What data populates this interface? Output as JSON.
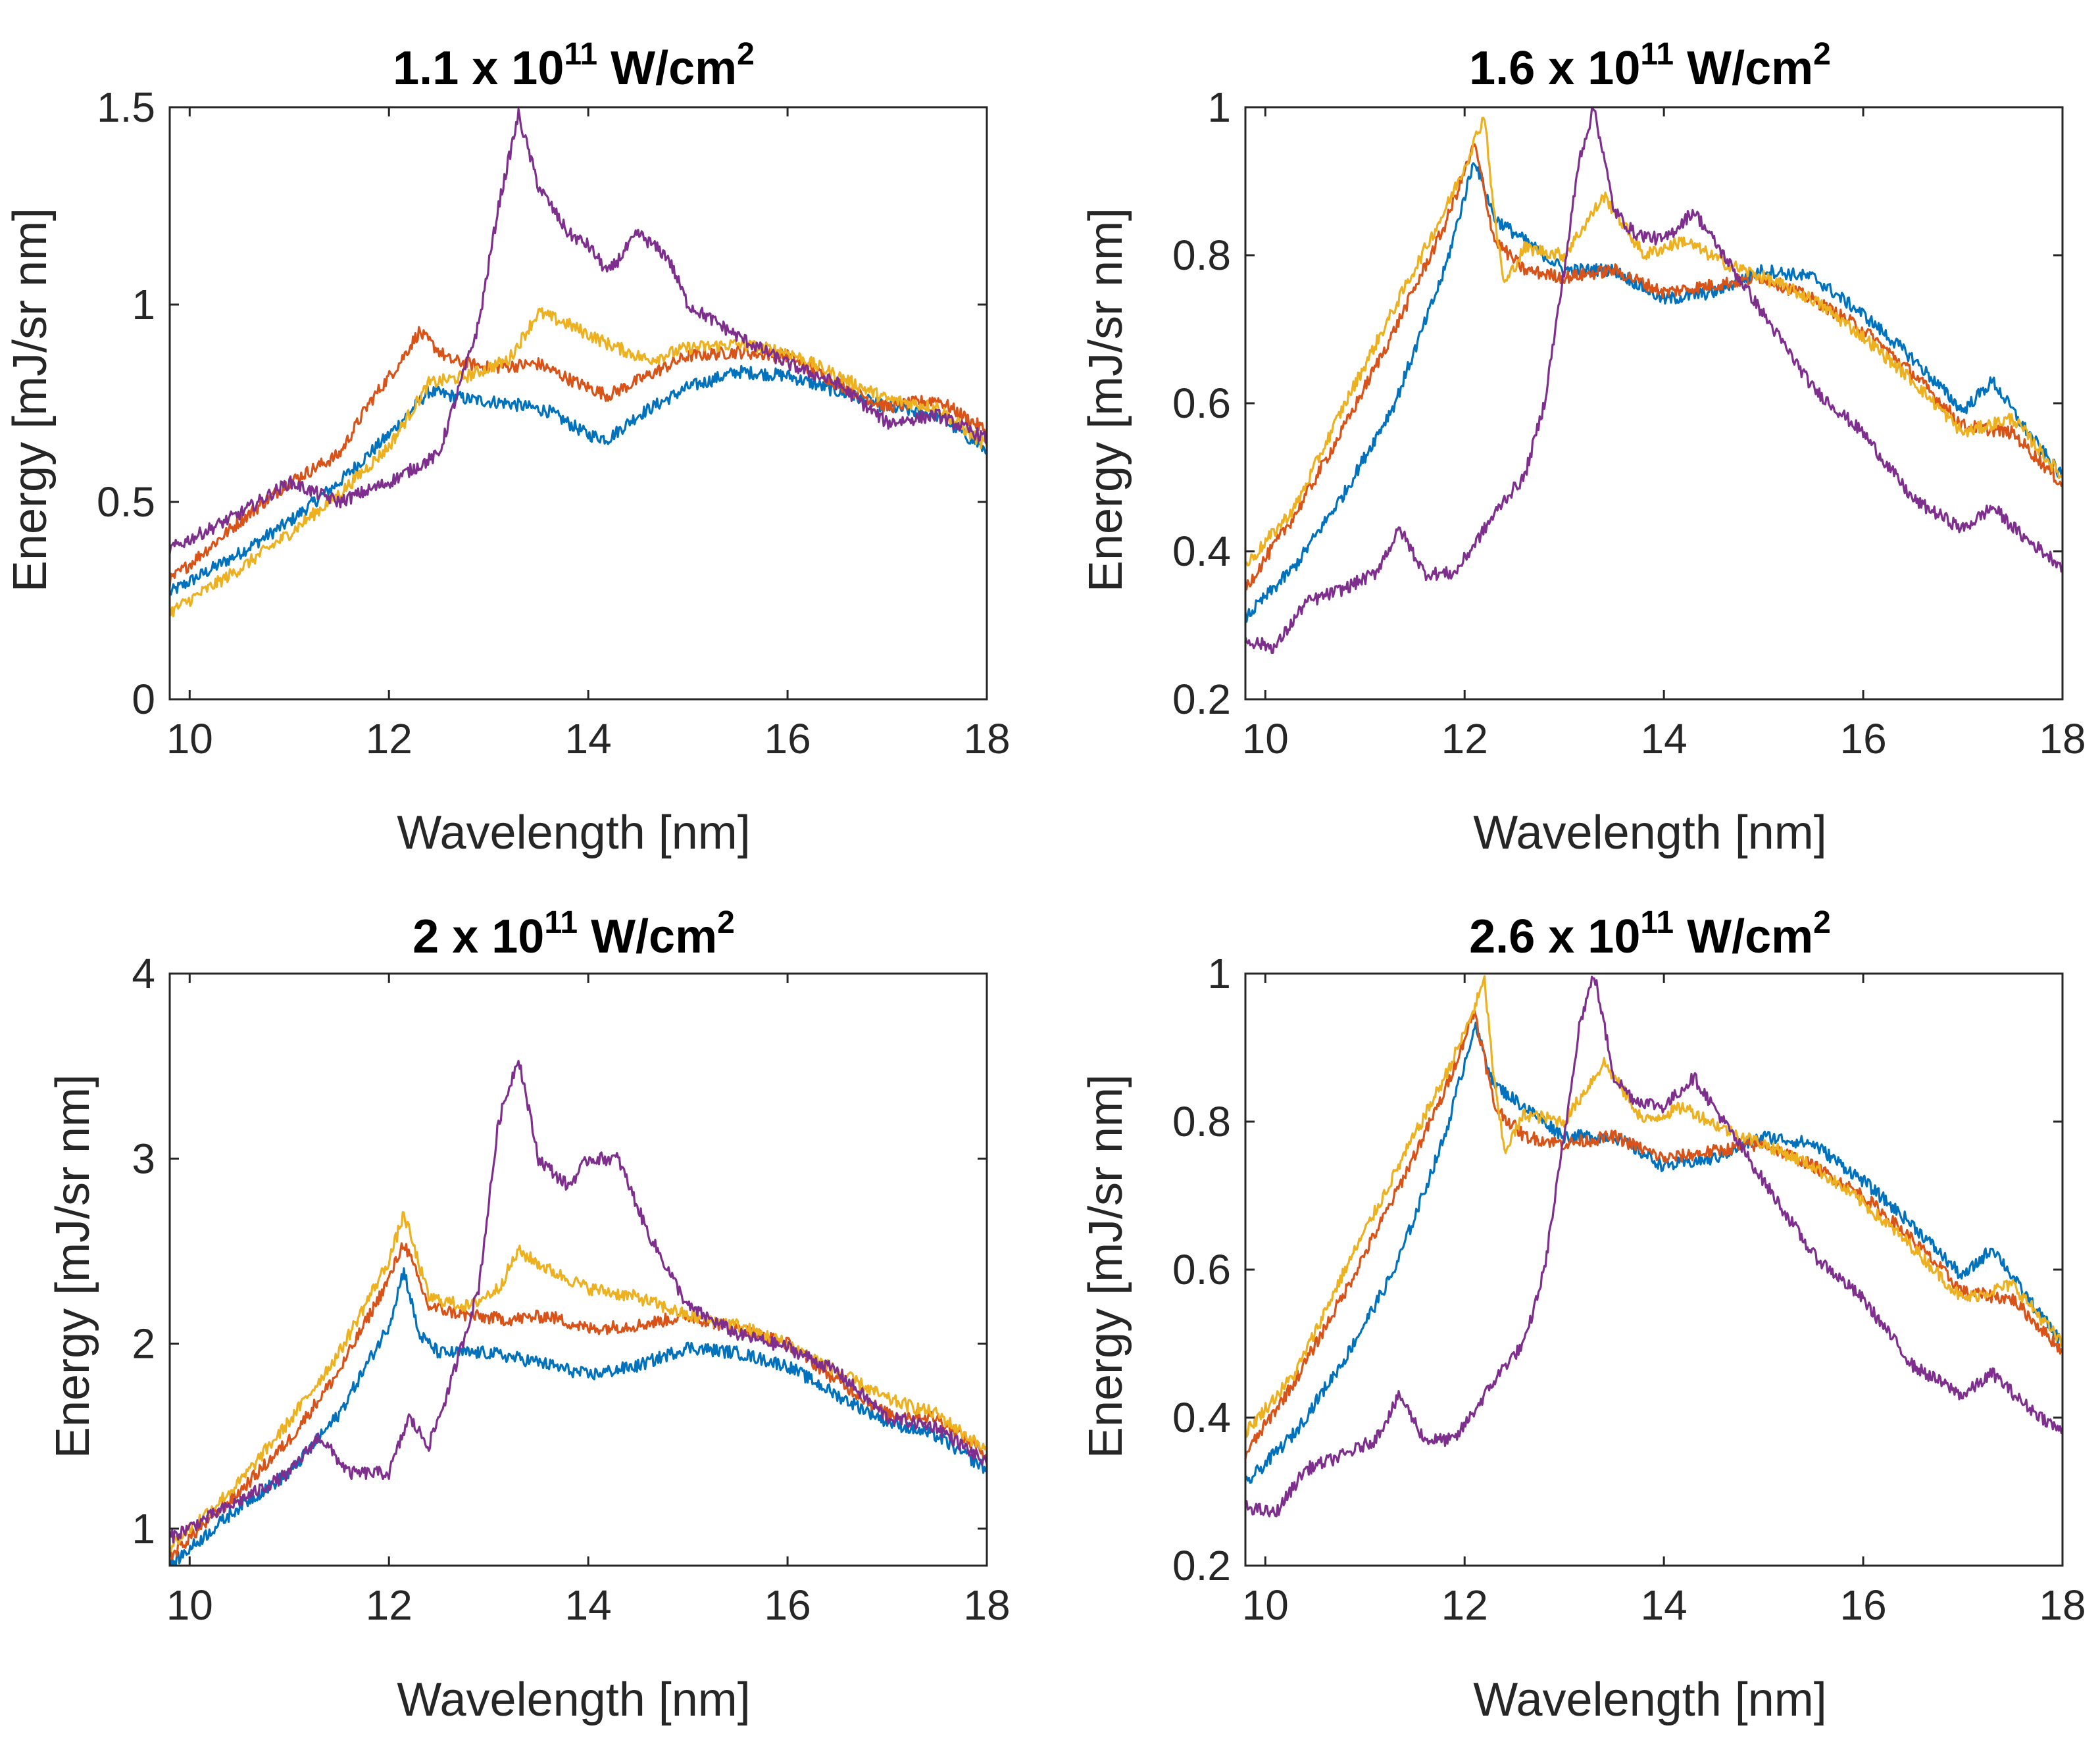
{
  "colors": {
    "blue": "#0072BD",
    "orange": "#D95319",
    "yellow": "#EDB120",
    "purple": "#7E2F8E"
  },
  "chart_data": [
    {
      "type": "line",
      "title": "1.1 x 10",
      "title_exponent": "11",
      "title_unit": " W/cm",
      "title_unit_exponent": "2",
      "xlabel": "Wavelength [nm]",
      "ylabel": "Energy [mJ/sr nm]",
      "xlim": [
        9.8,
        18
      ],
      "ylim": [
        0,
        1.5
      ],
      "xticks": [
        10,
        12,
        14,
        16,
        18
      ],
      "xtick_labels": [
        "10",
        "12",
        "14",
        "16",
        "18"
      ],
      "yticks": [
        0,
        0.5,
        1,
        1.5
      ],
      "ytick_labels": [
        "0",
        "0.5",
        "1",
        "1.5"
      ],
      "series": [
        {
          "name": "blue",
          "color": "#0072BD",
          "x": [
            9.8,
            10.5,
            11.0,
            11.5,
            12.0,
            12.4,
            12.8,
            13.2,
            13.6,
            14.0,
            14.2,
            14.5,
            15.0,
            15.5,
            16.0,
            16.5,
            17.0,
            17.5,
            18.0
          ],
          "y": [
            0.27,
            0.37,
            0.45,
            0.55,
            0.67,
            0.78,
            0.76,
            0.75,
            0.73,
            0.67,
            0.66,
            0.72,
            0.79,
            0.83,
            0.82,
            0.78,
            0.74,
            0.72,
            0.63
          ]
        },
        {
          "name": "orange",
          "color": "#D95319",
          "x": [
            9.8,
            10.5,
            11.0,
            11.5,
            11.8,
            12.1,
            12.3,
            12.6,
            13.0,
            13.5,
            13.9,
            14.2,
            14.6,
            15.0,
            15.5,
            16.0,
            16.5,
            17.0,
            17.5,
            18.0
          ],
          "y": [
            0.3,
            0.45,
            0.55,
            0.62,
            0.75,
            0.85,
            0.93,
            0.86,
            0.84,
            0.85,
            0.8,
            0.77,
            0.82,
            0.87,
            0.88,
            0.87,
            0.8,
            0.74,
            0.76,
            0.68
          ]
        },
        {
          "name": "yellow",
          "color": "#EDB120",
          "x": [
            9.8,
            10.5,
            11.0,
            11.5,
            12.0,
            12.4,
            12.8,
            13.2,
            13.5,
            13.8,
            14.2,
            14.6,
            15.0,
            15.5,
            16.0,
            16.5,
            17.0,
            17.5,
            18.0
          ],
          "y": [
            0.22,
            0.33,
            0.42,
            0.52,
            0.64,
            0.8,
            0.82,
            0.86,
            0.98,
            0.95,
            0.9,
            0.86,
            0.89,
            0.9,
            0.88,
            0.82,
            0.76,
            0.74,
            0.64
          ]
        },
        {
          "name": "purple",
          "color": "#7E2F8E",
          "x": [
            9.8,
            10.5,
            11.0,
            11.5,
            12.0,
            12.5,
            12.9,
            13.1,
            13.3,
            13.5,
            13.8,
            14.0,
            14.2,
            14.5,
            14.8,
            15.0,
            15.5,
            16.0,
            16.5,
            17.0,
            17.5,
            18.0
          ],
          "y": [
            0.38,
            0.47,
            0.55,
            0.5,
            0.55,
            0.62,
            0.95,
            1.25,
            1.48,
            1.3,
            1.18,
            1.15,
            1.08,
            1.18,
            1.12,
            1.0,
            0.92,
            0.85,
            0.8,
            0.7,
            0.72,
            0.66
          ]
        }
      ]
    },
    {
      "type": "line",
      "title": "1.6 x 10",
      "title_exponent": "11",
      "title_unit": " W/cm",
      "title_unit_exponent": "2",
      "xlabel": "Wavelength [nm]",
      "ylabel": "Energy [mJ/sr nm]",
      "xlim": [
        9.8,
        18
      ],
      "ylim": [
        0.2,
        1
      ],
      "xticks": [
        10,
        12,
        14,
        16,
        18
      ],
      "xtick_labels": [
        "10",
        "12",
        "14",
        "16",
        "18"
      ],
      "yticks": [
        0.2,
        0.4,
        0.6,
        0.8,
        1
      ],
      "ytick_labels": [
        "0.2",
        "0.4",
        "0.6",
        "0.8",
        "1"
      ],
      "series": [
        {
          "name": "blue",
          "color": "#0072BD",
          "x": [
            9.8,
            10.3,
            10.8,
            11.3,
            11.8,
            12.1,
            12.3,
            12.6,
            13.0,
            13.5,
            14.0,
            14.5,
            15.0,
            15.5,
            16.0,
            16.5,
            17.0,
            17.3,
            17.6,
            18.0
          ],
          "y": [
            0.31,
            0.38,
            0.48,
            0.6,
            0.78,
            0.93,
            0.85,
            0.82,
            0.78,
            0.78,
            0.74,
            0.75,
            0.78,
            0.77,
            0.72,
            0.66,
            0.59,
            0.63,
            0.57,
            0.5
          ]
        },
        {
          "name": "orange",
          "color": "#D95319",
          "x": [
            9.8,
            10.3,
            10.8,
            11.3,
            11.8,
            12.1,
            12.3,
            12.6,
            13.0,
            13.5,
            14.0,
            14.5,
            15.0,
            15.5,
            16.0,
            16.5,
            17.0,
            17.5,
            18.0
          ],
          "y": [
            0.35,
            0.45,
            0.57,
            0.7,
            0.84,
            0.95,
            0.82,
            0.78,
            0.77,
            0.78,
            0.75,
            0.76,
            0.77,
            0.74,
            0.7,
            0.64,
            0.57,
            0.56,
            0.49
          ]
        },
        {
          "name": "yellow",
          "color": "#EDB120",
          "x": [
            9.8,
            10.3,
            10.8,
            11.3,
            11.8,
            12.0,
            12.2,
            12.3,
            12.4,
            12.6,
            13.0,
            13.4,
            13.8,
            14.2,
            14.6,
            15.0,
            15.5,
            16.0,
            16.5,
            17.0,
            17.5,
            18.0
          ],
          "y": [
            0.38,
            0.46,
            0.6,
            0.73,
            0.86,
            0.92,
            0.99,
            0.85,
            0.76,
            0.81,
            0.8,
            0.88,
            0.8,
            0.82,
            0.79,
            0.77,
            0.74,
            0.69,
            0.63,
            0.56,
            0.58,
            0.5
          ]
        },
        {
          "name": "purple",
          "color": "#7E2F8E",
          "x": [
            9.8,
            10.1,
            10.4,
            10.8,
            11.1,
            11.35,
            11.6,
            11.9,
            12.2,
            12.4,
            12.6,
            12.8,
            13.0,
            13.15,
            13.3,
            13.5,
            13.7,
            14.0,
            14.3,
            14.6,
            15.0,
            15.5,
            16.0,
            16.5,
            17.0,
            17.3,
            17.6,
            18.0
          ],
          "y": [
            0.28,
            0.27,
            0.33,
            0.35,
            0.37,
            0.43,
            0.37,
            0.37,
            0.43,
            0.47,
            0.5,
            0.6,
            0.78,
            0.93,
            1.0,
            0.86,
            0.83,
            0.82,
            0.86,
            0.8,
            0.72,
            0.62,
            0.56,
            0.47,
            0.43,
            0.46,
            0.42,
            0.38
          ]
        }
      ]
    },
    {
      "type": "line",
      "title": "2 x 10",
      "title_exponent": "11",
      "title_unit": " W/cm",
      "title_unit_exponent": "2",
      "xlabel": "Wavelength [nm]",
      "ylabel": "Energy [mJ/sr nm]",
      "xlim": [
        9.8,
        18
      ],
      "ylim": [
        0.8,
        4
      ],
      "xticks": [
        10,
        12,
        14,
        16,
        18
      ],
      "xtick_labels": [
        "10",
        "12",
        "14",
        "16",
        "18"
      ],
      "yticks": [
        1,
        2,
        3,
        4
      ],
      "ytick_labels": [
        "1",
        "2",
        "3",
        "4"
      ],
      "series": [
        {
          "name": "blue",
          "color": "#0072BD",
          "x": [
            9.8,
            10.5,
            11.0,
            11.5,
            12.0,
            12.15,
            12.3,
            12.5,
            13.0,
            13.5,
            14.0,
            14.5,
            15.0,
            15.5,
            16.0,
            16.5,
            17.0,
            17.5,
            18.0
          ],
          "y": [
            0.8,
            1.12,
            1.3,
            1.62,
            2.1,
            2.4,
            2.05,
            1.95,
            1.95,
            1.9,
            1.83,
            1.88,
            1.98,
            1.95,
            1.88,
            1.72,
            1.58,
            1.5,
            1.32
          ]
        },
        {
          "name": "orange",
          "color": "#D95319",
          "x": [
            9.8,
            10.5,
            11.0,
            11.5,
            12.0,
            12.15,
            12.4,
            12.8,
            13.2,
            13.6,
            14.0,
            14.5,
            15.0,
            15.5,
            16.0,
            16.5,
            17.0,
            17.5,
            18.0
          ],
          "y": [
            0.85,
            1.2,
            1.48,
            1.85,
            2.35,
            2.55,
            2.2,
            2.15,
            2.13,
            2.15,
            2.08,
            2.1,
            2.15,
            2.08,
            2.0,
            1.8,
            1.62,
            1.6,
            1.4
          ]
        },
        {
          "name": "yellow",
          "color": "#EDB120",
          "x": [
            9.8,
            10.5,
            11.0,
            11.5,
            12.0,
            12.15,
            12.4,
            12.8,
            13.1,
            13.3,
            13.6,
            14.0,
            14.5,
            15.0,
            15.5,
            16.0,
            16.5,
            17.0,
            17.5,
            18.0
          ],
          "y": [
            0.9,
            1.25,
            1.58,
            1.95,
            2.45,
            2.7,
            2.25,
            2.2,
            2.3,
            2.5,
            2.4,
            2.3,
            2.25,
            2.15,
            2.1,
            2.0,
            1.85,
            1.7,
            1.62,
            1.42
          ]
        },
        {
          "name": "purple",
          "color": "#7E2F8E",
          "x": [
            9.8,
            10.5,
            11.0,
            11.3,
            11.6,
            12.0,
            12.2,
            12.4,
            12.6,
            12.9,
            13.1,
            13.3,
            13.5,
            13.8,
            14.0,
            14.3,
            14.6,
            15.0,
            15.5,
            16.0,
            16.5,
            17.0,
            17.5,
            18.0
          ],
          "y": [
            0.95,
            1.15,
            1.3,
            1.5,
            1.3,
            1.3,
            1.6,
            1.45,
            1.75,
            2.3,
            3.2,
            3.55,
            3.0,
            2.85,
            3.0,
            3.0,
            2.6,
            2.2,
            2.05,
            1.98,
            1.85,
            1.6,
            1.55,
            1.35
          ]
        }
      ]
    },
    {
      "type": "line",
      "title": "2.6 x 10",
      "title_exponent": "11",
      "title_unit": " W/cm",
      "title_unit_exponent": "2",
      "xlabel": "Wavelength [nm]",
      "ylabel": "Energy [mJ/sr nm]",
      "xlim": [
        9.8,
        18
      ],
      "ylim": [
        0.2,
        1
      ],
      "xticks": [
        10,
        12,
        14,
        16,
        18
      ],
      "xtick_labels": [
        "10",
        "12",
        "14",
        "16",
        "18"
      ],
      "yticks": [
        0.2,
        0.4,
        0.6,
        0.8,
        1
      ],
      "ytick_labels": [
        "0.2",
        "0.4",
        "0.6",
        "0.8",
        "1"
      ],
      "series": [
        {
          "name": "blue",
          "color": "#0072BD",
          "x": [
            9.8,
            10.3,
            10.8,
            11.3,
            11.8,
            12.1,
            12.3,
            12.6,
            13.0,
            13.5,
            14.0,
            14.5,
            15.0,
            15.5,
            16.0,
            16.5,
            17.0,
            17.3,
            17.6,
            18.0
          ],
          "y": [
            0.31,
            0.38,
            0.48,
            0.6,
            0.78,
            0.93,
            0.85,
            0.82,
            0.78,
            0.78,
            0.74,
            0.75,
            0.78,
            0.77,
            0.72,
            0.66,
            0.59,
            0.63,
            0.57,
            0.5
          ]
        },
        {
          "name": "orange",
          "color": "#D95319",
          "x": [
            9.8,
            10.3,
            10.8,
            11.3,
            11.8,
            12.1,
            12.3,
            12.6,
            13.0,
            13.5,
            14.0,
            14.5,
            15.0,
            15.5,
            16.0,
            16.5,
            17.0,
            17.5,
            18.0
          ],
          "y": [
            0.35,
            0.45,
            0.57,
            0.7,
            0.84,
            0.95,
            0.82,
            0.78,
            0.77,
            0.78,
            0.75,
            0.76,
            0.77,
            0.74,
            0.7,
            0.64,
            0.57,
            0.56,
            0.49
          ]
        },
        {
          "name": "yellow",
          "color": "#EDB120",
          "x": [
            9.8,
            10.3,
            10.8,
            11.3,
            11.8,
            12.0,
            12.2,
            12.3,
            12.4,
            12.6,
            13.0,
            13.4,
            13.8,
            14.2,
            14.6,
            15.0,
            15.5,
            16.0,
            16.5,
            17.0,
            17.5,
            18.0
          ],
          "y": [
            0.38,
            0.46,
            0.6,
            0.73,
            0.86,
            0.92,
            0.99,
            0.85,
            0.76,
            0.81,
            0.8,
            0.88,
            0.8,
            0.82,
            0.79,
            0.77,
            0.74,
            0.69,
            0.63,
            0.56,
            0.58,
            0.5
          ]
        },
        {
          "name": "purple",
          "color": "#7E2F8E",
          "x": [
            9.8,
            10.1,
            10.4,
            10.8,
            11.1,
            11.35,
            11.6,
            11.9,
            12.2,
            12.4,
            12.6,
            12.8,
            13.0,
            13.15,
            13.3,
            13.5,
            13.7,
            14.0,
            14.3,
            14.6,
            15.0,
            15.5,
            16.0,
            16.5,
            17.0,
            17.3,
            17.6,
            18.0
          ],
          "y": [
            0.28,
            0.27,
            0.33,
            0.35,
            0.37,
            0.43,
            0.37,
            0.37,
            0.43,
            0.47,
            0.5,
            0.6,
            0.78,
            0.93,
            1.0,
            0.86,
            0.83,
            0.82,
            0.86,
            0.8,
            0.72,
            0.62,
            0.56,
            0.47,
            0.43,
            0.46,
            0.42,
            0.38
          ]
        }
      ]
    }
  ]
}
